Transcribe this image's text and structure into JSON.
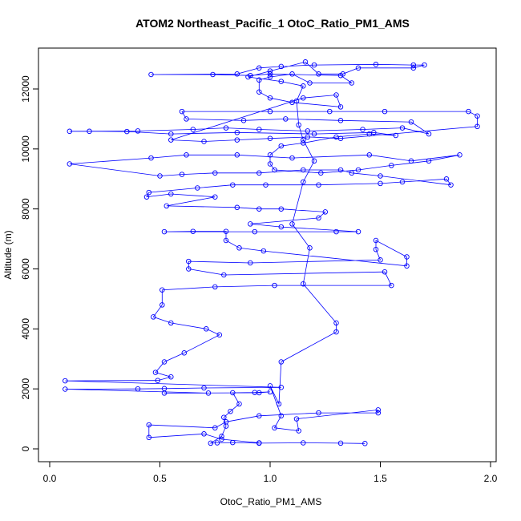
{
  "chart_data": {
    "type": "scatter",
    "title": "ATOM2 Northeast_Pacific_1 OtoC_Ratio_PM1_AMS",
    "xlabel": "OtoC_Ratio_PM1_AMS",
    "ylabel": "Altitude (m)",
    "xlim": [
      0.0,
      2.0
    ],
    "ylim": [
      0,
      13000
    ],
    "x_ticks": [
      "0.0",
      "0.5",
      "1.0",
      "1.5",
      "2.0"
    ],
    "y_ticks": [
      "0",
      "2000",
      "4000",
      "6000",
      "8000",
      "10000",
      "12000"
    ],
    "grid": false,
    "legend": "none",
    "series_color": "#0000ff",
    "marker": "open-circle",
    "connected": true,
    "points": [
      [
        1.43,
        180
      ],
      [
        1.32,
        190
      ],
      [
        1.15,
        200
      ],
      [
        0.95,
        190
      ],
      [
        0.83,
        210
      ],
      [
        0.76,
        200
      ],
      [
        0.73,
        190
      ],
      [
        0.78,
        420
      ],
      [
        0.8,
        760
      ],
      [
        0.79,
        1050
      ],
      [
        0.82,
        1250
      ],
      [
        0.86,
        1500
      ],
      [
        0.83,
        1870
      ],
      [
        0.93,
        1880
      ],
      [
        1.0,
        1900
      ],
      [
        0.95,
        1870
      ],
      [
        0.52,
        1860
      ],
      [
        0.72,
        1860
      ],
      [
        0.07,
        1990
      ],
      [
        0.4,
        2000
      ],
      [
        0.52,
        2010
      ],
      [
        0.7,
        2030
      ],
      [
        1.05,
        2050
      ],
      [
        0.07,
        2270
      ],
      [
        0.49,
        2280
      ],
      [
        0.55,
        2400
      ],
      [
        0.48,
        2550
      ],
      [
        0.52,
        2900
      ],
      [
        0.61,
        3200
      ],
      [
        0.77,
        3800
      ],
      [
        0.71,
        4000
      ],
      [
        0.55,
        4200
      ],
      [
        0.47,
        4400
      ],
      [
        0.51,
        4800
      ],
      [
        0.51,
        5300
      ],
      [
        0.75,
        5400
      ],
      [
        1.02,
        5450
      ],
      [
        1.55,
        5450
      ],
      [
        1.52,
        5900
      ],
      [
        0.79,
        5800
      ],
      [
        0.63,
        6000
      ],
      [
        0.63,
        6250
      ],
      [
        0.91,
        6200
      ],
      [
        1.5,
        6300
      ],
      [
        1.48,
        6650
      ],
      [
        1.48,
        6950
      ],
      [
        1.62,
        6400
      ],
      [
        1.62,
        6100
      ],
      [
        0.97,
        6600
      ],
      [
        0.86,
        6700
      ],
      [
        0.8,
        6950
      ],
      [
        0.8,
        7250
      ],
      [
        0.65,
        7250
      ],
      [
        0.52,
        7240
      ],
      [
        0.93,
        7240
      ],
      [
        1.3,
        7240
      ],
      [
        1.4,
        7240
      ],
      [
        1.05,
        7400
      ],
      [
        0.91,
        7500
      ],
      [
        1.22,
        7700
      ],
      [
        1.25,
        7900
      ],
      [
        1.05,
        8000
      ],
      [
        0.95,
        8000
      ],
      [
        0.85,
        8050
      ],
      [
        0.53,
        8100
      ],
      [
        0.75,
        8400
      ],
      [
        0.55,
        8500
      ],
      [
        0.44,
        8400
      ],
      [
        0.45,
        8550
      ],
      [
        0.67,
        8700
      ],
      [
        0.83,
        8800
      ],
      [
        0.98,
        8800
      ],
      [
        1.22,
        8800
      ],
      [
        1.5,
        8850
      ],
      [
        1.6,
        8900
      ],
      [
        1.8,
        9000
      ],
      [
        1.82,
        8800
      ],
      [
        1.5,
        9100
      ],
      [
        1.37,
        9200
      ],
      [
        1.32,
        9300
      ],
      [
        1.15,
        9300
      ],
      [
        0.95,
        9200
      ],
      [
        0.75,
        9200
      ],
      [
        0.6,
        9150
      ],
      [
        0.5,
        9100
      ],
      [
        0.09,
        9500
      ],
      [
        0.46,
        9700
      ],
      [
        0.62,
        9800
      ],
      [
        0.85,
        9800
      ],
      [
        1.1,
        9700
      ],
      [
        1.45,
        9800
      ],
      [
        1.64,
        9600
      ],
      [
        1.86,
        9800
      ],
      [
        1.72,
        9600
      ],
      [
        1.55,
        9450
      ],
      [
        1.4,
        9300
      ],
      [
        1.23,
        9200
      ],
      [
        1.02,
        9300
      ],
      [
        1.0,
        9500
      ],
      [
        1.0,
        9800
      ],
      [
        1.05,
        10100
      ],
      [
        1.15,
        10200
      ],
      [
        1.3,
        10400
      ],
      [
        1.45,
        10500
      ],
      [
        1.57,
        10450
      ],
      [
        1.47,
        10550
      ],
      [
        1.2,
        10500
      ],
      [
        0.85,
        10550
      ],
      [
        0.55,
        10500
      ],
      [
        0.35,
        10580
      ],
      [
        0.18,
        10590
      ],
      [
        0.09,
        10590
      ],
      [
        0.4,
        10600
      ],
      [
        0.65,
        10650
      ],
      [
        0.8,
        10700
      ],
      [
        0.95,
        10650
      ],
      [
        1.17,
        10600
      ],
      [
        1.42,
        10650
      ],
      [
        1.6,
        10700
      ],
      [
        1.72,
        10500
      ],
      [
        1.64,
        10900
      ],
      [
        1.32,
        10950
      ],
      [
        1.07,
        11000
      ],
      [
        0.88,
        10950
      ],
      [
        0.62,
        11000
      ],
      [
        0.6,
        11250
      ],
      [
        1.0,
        11250
      ],
      [
        1.27,
        11250
      ],
      [
        1.52,
        11250
      ],
      [
        1.9,
        11250
      ],
      [
        1.94,
        11100
      ],
      [
        1.94,
        10750
      ],
      [
        1.32,
        10350
      ],
      [
        1.17,
        10400
      ],
      [
        1.0,
        10350
      ],
      [
        0.85,
        10300
      ],
      [
        0.7,
        10250
      ],
      [
        0.55,
        10300
      ],
      [
        1.15,
        11700
      ],
      [
        1.3,
        11800
      ],
      [
        1.32,
        11400
      ],
      [
        1.1,
        11550
      ],
      [
        1.0,
        11700
      ],
      [
        0.95,
        11900
      ],
      [
        0.95,
        12300
      ],
      [
        1.0,
        12400
      ],
      [
        1.1,
        12500
      ],
      [
        1.18,
        12200
      ],
      [
        1.37,
        12200
      ],
      [
        1.32,
        12450
      ],
      [
        1.0,
        12500
      ],
      [
        0.91,
        12450
      ],
      [
        0.74,
        12480
      ],
      [
        0.46,
        12480
      ],
      [
        0.85,
        12500
      ],
      [
        0.95,
        12700
      ],
      [
        1.05,
        12750
      ],
      [
        1.2,
        12800
      ],
      [
        1.48,
        12820
      ],
      [
        1.65,
        12800
      ],
      [
        1.7,
        12800
      ],
      [
        1.65,
        12700
      ],
      [
        1.4,
        12700
      ],
      [
        1.33,
        12500
      ],
      [
        1.22,
        12500
      ],
      [
        1.16,
        12900
      ],
      [
        1.0,
        12600
      ],
      [
        0.9,
        12400
      ],
      [
        1.05,
        12250
      ],
      [
        1.15,
        12100
      ],
      [
        1.12,
        11600
      ],
      [
        1.13,
        10800
      ],
      [
        1.15,
        10300
      ],
      [
        1.2,
        9600
      ],
      [
        1.15,
        8900
      ],
      [
        1.1,
        7500
      ],
      [
        1.18,
        6700
      ],
      [
        1.15,
        5500
      ],
      [
        1.3,
        4200
      ],
      [
        1.3,
        3900
      ],
      [
        1.05,
        2900
      ],
      [
        1.04,
        1500
      ],
      [
        1.0,
        2100
      ],
      [
        1.05,
        1100
      ],
      [
        1.02,
        700
      ],
      [
        1.13,
        600
      ],
      [
        1.12,
        1000
      ],
      [
        1.49,
        1300
      ],
      [
        1.49,
        1200
      ],
      [
        1.22,
        1200
      ],
      [
        0.95,
        1100
      ],
      [
        0.8,
        900
      ],
      [
        0.75,
        700
      ],
      [
        0.45,
        800
      ],
      [
        0.45,
        380
      ],
      [
        0.7,
        500
      ],
      [
        0.78,
        320
      ],
      [
        0.95,
        200
      ]
    ]
  }
}
